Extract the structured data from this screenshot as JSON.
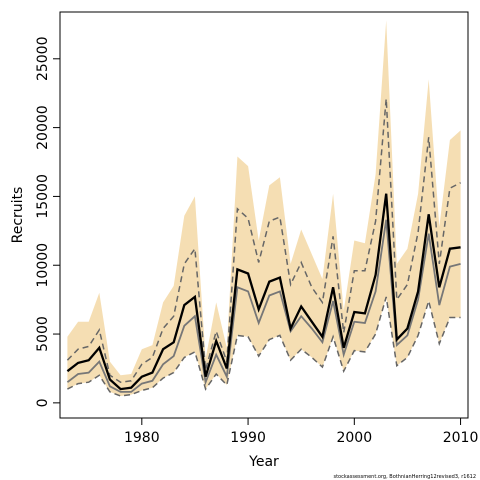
{
  "chart_data": {
    "type": "line",
    "xlabel": "Year",
    "ylabel": "Recruits",
    "xlim": [
      1972.3,
      2010.7
    ],
    "ylim": [
      -1100,
      28400
    ],
    "x_ticks": [
      1980,
      1990,
      2000,
      2010
    ],
    "y_ticks": [
      0,
      5000,
      10000,
      15000,
      20000,
      25000
    ],
    "x_tick_labels": [
      "1980",
      "1990",
      "2000",
      "2010"
    ],
    "y_tick_labels": [
      "0",
      "5000",
      "10000",
      "15000",
      "20000",
      "25000"
    ],
    "grid": false,
    "x": [
      1973,
      1974,
      1975,
      1976,
      1977,
      1978,
      1979,
      1980,
      1981,
      1982,
      1983,
      1984,
      1985,
      1986,
      1987,
      1988,
      1989,
      1990,
      1991,
      1992,
      1993,
      1994,
      1995,
      1996,
      1997,
      1998,
      1999,
      2000,
      2001,
      2002,
      2003,
      2004,
      2005,
      2006,
      2007,
      2008,
      2009,
      2010
    ],
    "series": [
      {
        "values": [
          4800,
          5900,
          5900,
          8000,
          3000,
          2000,
          2100,
          3900,
          4200,
          7300,
          8500,
          13600,
          15000,
          3200,
          7300,
          4000,
          17900,
          17200,
          11800,
          15800,
          16400,
          10100,
          12600,
          10800,
          9000,
          15200,
          6700,
          11800,
          11600,
          16600,
          27800,
          10100,
          11200,
          15200,
          23500,
          12800,
          19100,
          19800
        ]
      },
      {
        "values": [
          1000,
          1400,
          1500,
          2000,
          800,
          500,
          600,
          900,
          1100,
          1800,
          2200,
          3300,
          3700,
          1000,
          2100,
          1300,
          4900,
          4800,
          3400,
          4600,
          4900,
          3100,
          3900,
          3300,
          2600,
          4800,
          2300,
          3800,
          3700,
          5000,
          7700,
          2700,
          3300,
          4900,
          7400,
          4300,
          6200,
          6200
        ]
      },
      {
        "values": [
          3100,
          3900,
          4100,
          5300,
          2000,
          1500,
          1600,
          2800,
          3300,
          5400,
          6300,
          10100,
          11200,
          2400,
          5200,
          3000,
          14100,
          13400,
          10200,
          13200,
          13500,
          8600,
          10200,
          8400,
          7300,
          12100,
          5100,
          9600,
          9600,
          13200,
          22100,
          7500,
          8600,
          12400,
          19300,
          10100,
          15600,
          16000
        ]
      },
      {
        "values": [
          1500,
          2100,
          2200,
          3000,
          1200,
          800,
          800,
          1400,
          1600,
          2800,
          3400,
          5600,
          6300,
          1500,
          3500,
          1900,
          8400,
          8100,
          5800,
          7800,
          8100,
          5200,
          6300,
          5400,
          4400,
          7400,
          3500,
          5900,
          5800,
          8100,
          13300,
          4200,
          4900,
          7500,
          12300,
          7100,
          9900,
          10100
        ]
      },
      {
        "values": [
          2300,
          2900,
          3100,
          4000,
          1700,
          1000,
          1100,
          1900,
          2200,
          3900,
          4400,
          7100,
          7700,
          1900,
          4500,
          2500,
          9700,
          9400,
          6800,
          8800,
          9100,
          5400,
          7000,
          5900,
          4800,
          8400,
          4000,
          6600,
          6500,
          9300,
          15200,
          4600,
          5400,
          8100,
          13700,
          8400,
          11200,
          11300
        ]
      }
    ]
  },
  "footnote": "stockassessment.org, BothnianHerring12revised3, r1612"
}
